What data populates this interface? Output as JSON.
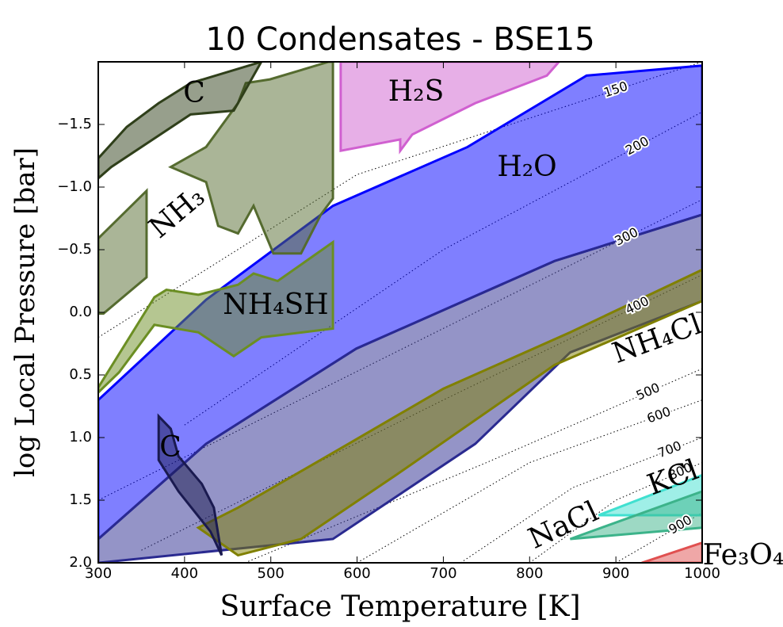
{
  "chart_data": {
    "type": "region",
    "title": "10 Condensates - BSE15",
    "x_label": "Surface Temperature [K]",
    "y_label": "log Local Pressure [bar]",
    "xlim": [
      300,
      1000
    ],
    "ylim": [
      2.0,
      -2.0
    ],
    "xticks": [
      300,
      400,
      500,
      600,
      700,
      800,
      900,
      1000
    ],
    "yticks": [
      {
        "value": -1.5,
        "label": "−1.5"
      },
      {
        "value": -1.0,
        "label": "−1.0"
      },
      {
        "value": -0.5,
        "label": "−0.5"
      },
      {
        "value": 0.0,
        "label": "0.0"
      },
      0.5,
      {
        "value": 1.0,
        "label": "1.0"
      },
      1.5,
      {
        "value": 2.0,
        "label": "2.0"
      }
    ],
    "contours": [
      {
        "level": 150,
        "x": [
          300,
          600,
          1000
        ],
        "y": [
          0.2,
          -1.1,
          -2.0
        ]
      },
      {
        "level": 200,
        "x": [
          400,
          700,
          1000
        ],
        "y": [
          0.9,
          -0.5,
          -1.6
        ]
      },
      {
        "level": 300,
        "x": [
          300,
          650,
          1000
        ],
        "y": [
          1.5,
          0.3,
          -0.9
        ]
      },
      {
        "level": 400,
        "x": [
          350,
          700,
          1000
        ],
        "y": [
          1.9,
          0.7,
          -0.3
        ]
      },
      {
        "level": 500,
        "x": [
          470,
          750,
          1000
        ],
        "y": [
          2.0,
          1.2,
          0.45
        ]
      },
      {
        "level": 600,
        "x": [
          600,
          800,
          1000
        ],
        "y": [
          2.0,
          1.2,
          0.7
        ]
      },
      {
        "level": 700,
        "x": [
          720,
          850,
          1000
        ],
        "y": [
          2.0,
          1.4,
          1.0
        ]
      },
      {
        "level": 800,
        "x": [
          800,
          900,
          1000
        ],
        "y": [
          2.0,
          1.5,
          1.2
        ]
      },
      {
        "level": 900,
        "x": [
          900,
          1000
        ],
        "y": [
          2.0,
          1.6
        ]
      }
    ],
    "series": [
      {
        "name": "H₂O",
        "color": "#0000ff",
        "polygons": [
          {
            "x": [
              300,
              425,
              572,
              728,
              866,
              1000,
              1000,
              829,
              599,
              425,
              300
            ],
            "y": [
              0.7,
              -0.1,
              -0.85,
              -1.32,
              -1.89,
              -1.97,
              -0.78,
              -0.41,
              0.29,
              1.05,
              1.81
            ]
          },
          {
            "color": "#2a2a90",
            "x": [
              300,
              425,
              599,
              829,
              1000,
              1000,
              847,
              737,
              572,
              300
            ],
            "y": [
              1.81,
              1.05,
              0.29,
              -0.41,
              -0.78,
              -0.09,
              0.32,
              1.05,
              1.81,
              2.0
            ]
          }
        ]
      },
      {
        "name": "NH₄Cl",
        "color": "#808000",
        "polygons": [
          {
            "x": [
              416,
              462,
              590,
              700,
              847,
              1000,
              1000,
              829,
              645,
              535,
              462
            ],
            "y": [
              1.72,
              1.56,
              1.05,
              0.61,
              0.16,
              -0.34,
              -0.09,
              0.42,
              1.3,
              1.81,
              1.94
            ]
          }
        ]
      },
      {
        "name": "NH₃",
        "color": "#556b2f",
        "polygons": [
          {
            "x": [
              384,
              425,
              462,
              471,
              499,
              567,
              572,
              572,
              558,
              535,
              503,
              480,
              462,
              439,
              425
            ],
            "y": [
              -1.16,
              -1.32,
              -1.67,
              -1.83,
              -1.86,
              -2.0,
              -2.0,
              -0.91,
              -0.78,
              -0.47,
              -0.47,
              -0.85,
              -0.63,
              -0.69,
              -1.04
            ]
          },
          {
            "x": [
              300,
              356,
              356,
              306,
              300
            ],
            "y": [
              -0.59,
              -0.97,
              -0.28,
              0.01,
              0.01
            ]
          }
        ]
      },
      {
        "name": "C",
        "color": "#2f3f1a",
        "polygons": [
          {
            "x": [
              300,
              333,
              370,
              407,
              489,
              457,
              407,
              315,
              300
            ],
            "y": [
              -1.23,
              -1.48,
              -1.67,
              -1.83,
              -2.0,
              -1.61,
              -1.58,
              -1.16,
              -1.07
            ]
          }
        ]
      },
      {
        "name": "C",
        "color": "#1a1a50",
        "polygons": [
          {
            "x": [
              370,
              384,
              393,
              420,
              434,
              443,
              430,
              393,
              370
            ],
            "y": [
              0.83,
              0.93,
              1.15,
              1.37,
              1.56,
              1.94,
              1.75,
              1.43,
              1.18
            ]
          }
        ]
      },
      {
        "name": "NH₄SH",
        "color": "#6b8e23",
        "polygons": [
          {
            "x": [
              365,
              379,
              416,
              462,
              480,
              508,
              572,
              572,
              489,
              457,
              416,
              365,
              324,
              300,
              300
            ],
            "y": [
              -0.12,
              -0.18,
              -0.14,
              -0.22,
              -0.31,
              -0.25,
              -0.56,
              0.13,
              0.2,
              0.35,
              0.16,
              0.1,
              0.48,
              0.64,
              0.6
            ]
          }
        ]
      },
      {
        "name": "H₂S",
        "color": "#d060d0",
        "polygons": [
          {
            "x": [
              581,
              834,
              820,
              737,
              664,
              650,
              650,
              581
            ],
            "y": [
              -2.0,
              -2.0,
              -1.89,
              -1.67,
              -1.42,
              -1.29,
              -1.38,
              -1.29
            ]
          }
        ]
      },
      {
        "name": "KCl",
        "color": "#40e0d0",
        "polygons": [
          {
            "x": [
              880,
              1000,
              1000
            ],
            "y": [
              1.62,
              1.3,
              1.62
            ]
          }
        ]
      },
      {
        "name": "NaCl",
        "color": "#3cb38a",
        "polygons": [
          {
            "x": [
              847,
              1000,
              1000
            ],
            "y": [
              1.81,
              1.43,
              1.72
            ]
          }
        ]
      },
      {
        "name": "Fe₃O₄",
        "color": "#e05050",
        "polygons": [
          {
            "x": [
              930,
              1000,
              1000
            ],
            "y": [
              2.0,
              1.84,
              2.0
            ]
          }
        ]
      }
    ]
  }
}
